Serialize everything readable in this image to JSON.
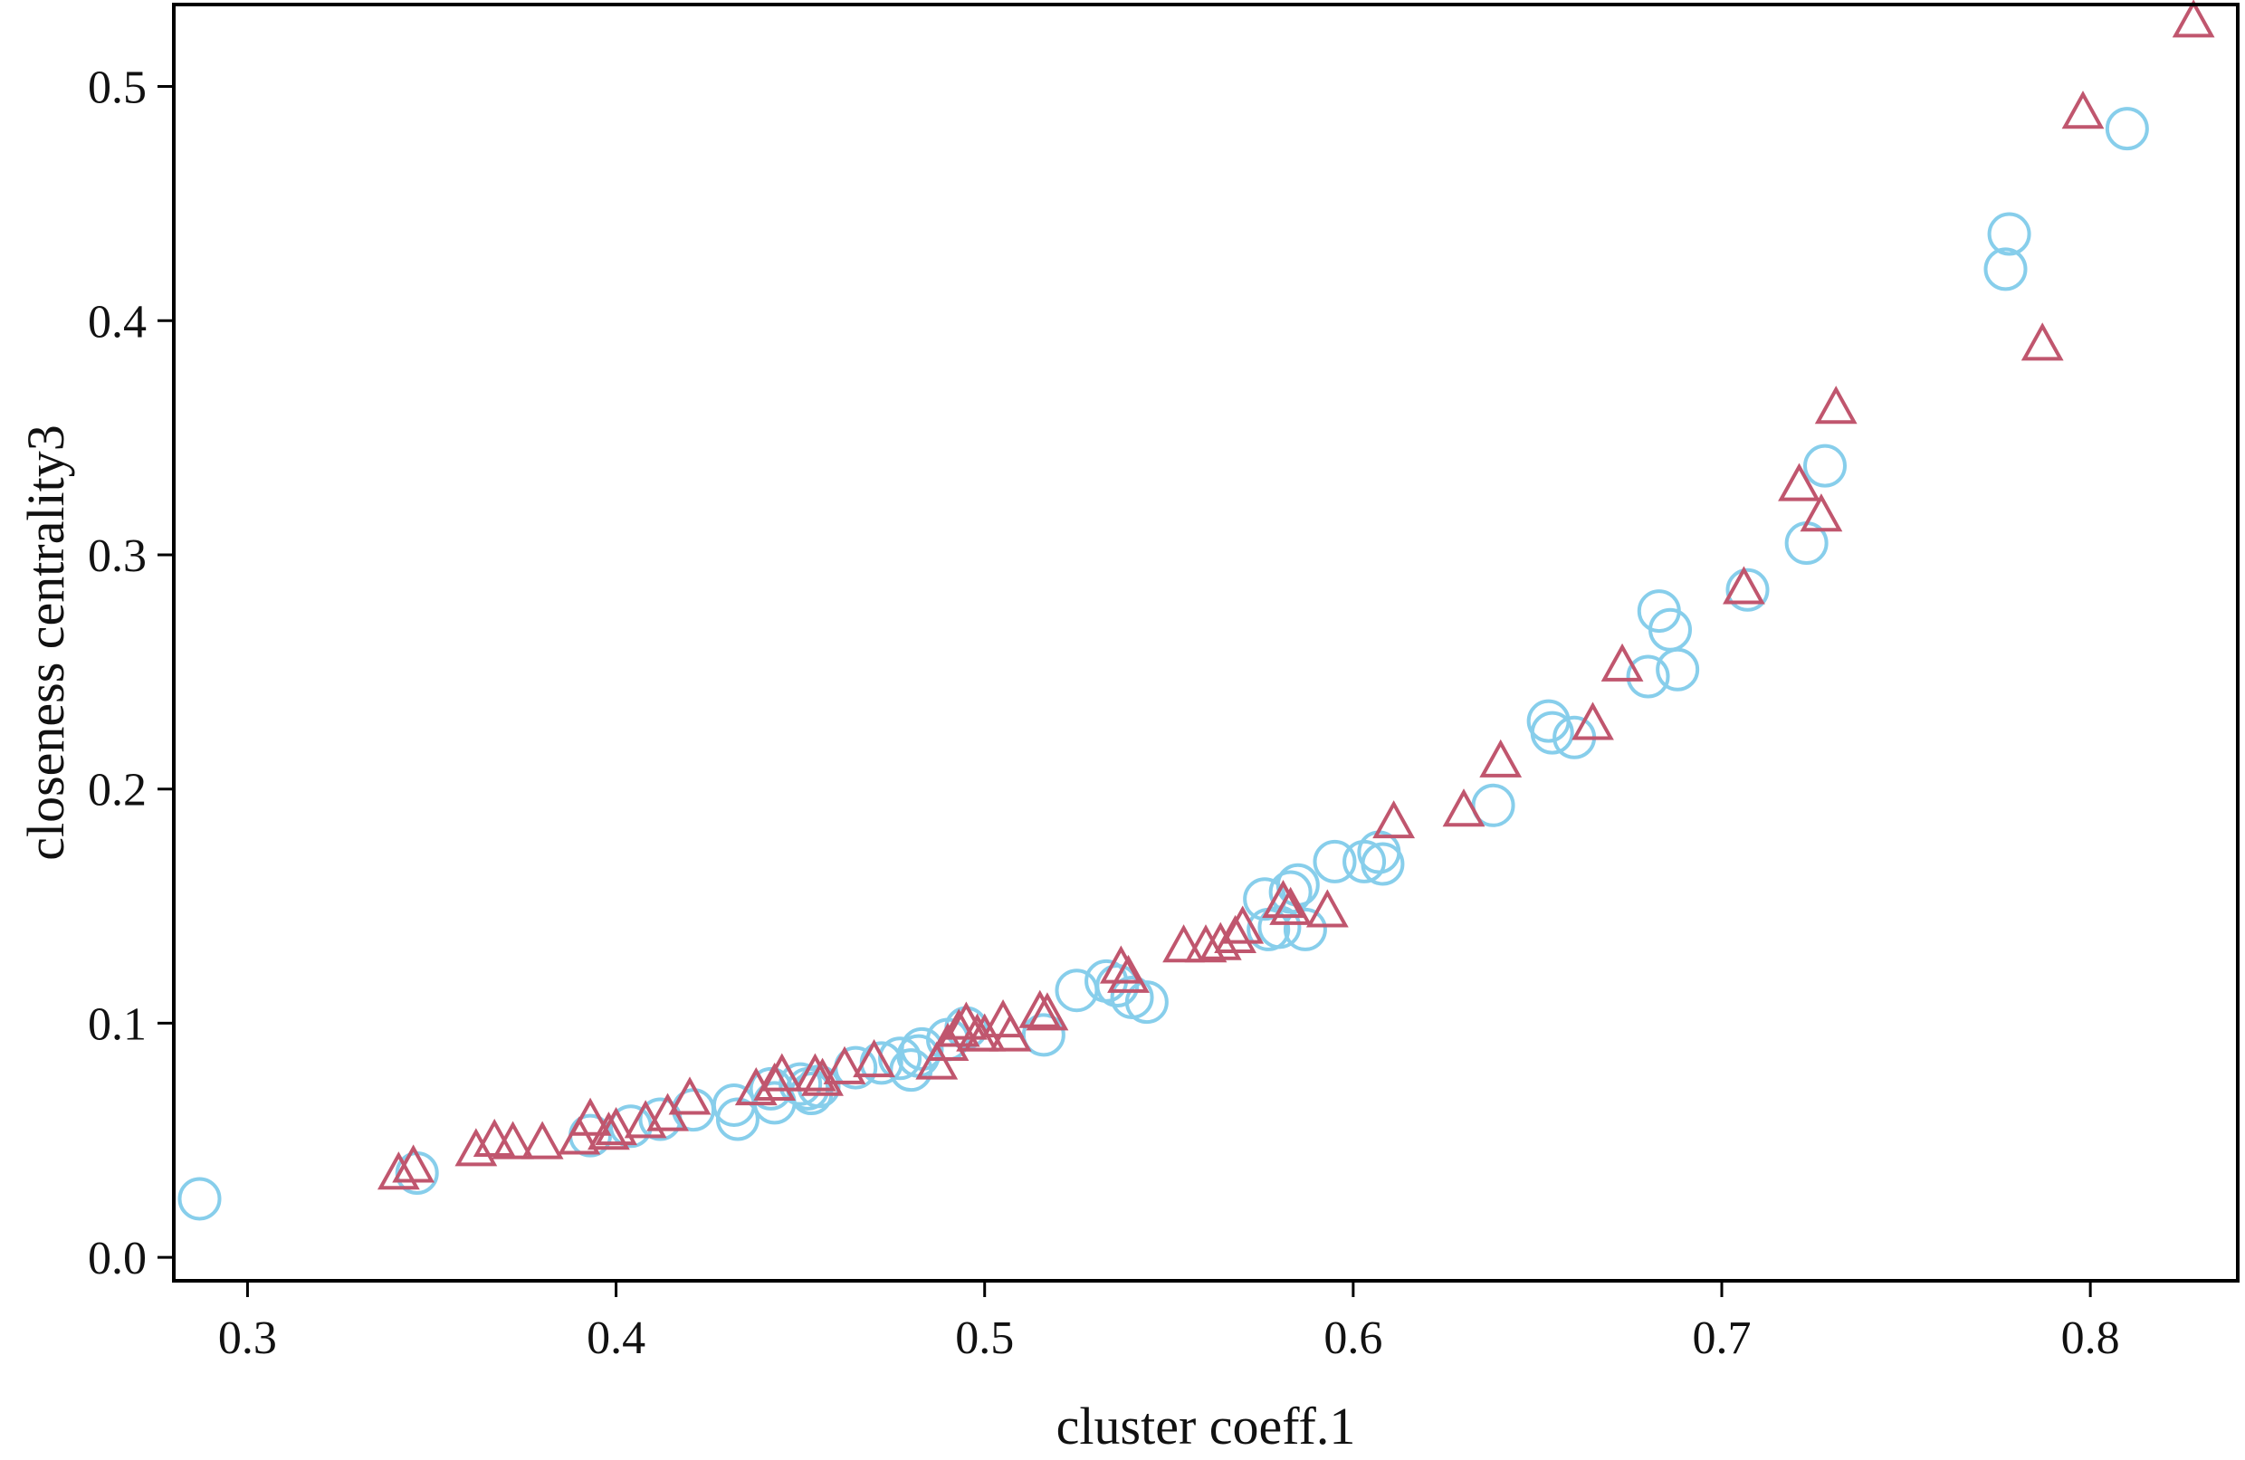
{
  "chart_data": {
    "type": "scatter",
    "title": "",
    "xlabel": "cluster coeff.1",
    "ylabel": "closeness centrality3",
    "xlim": [
      0.28,
      0.84
    ],
    "ylim": [
      -0.01,
      0.535
    ],
    "xticks": [
      0.3,
      0.4,
      0.5,
      0.6,
      0.7,
      0.8
    ],
    "yticks": [
      0.0,
      0.1,
      0.2,
      0.3,
      0.4,
      0.5
    ],
    "xtick_labels": [
      "0.3",
      "0.4",
      "0.5",
      "0.6",
      "0.7",
      "0.8"
    ],
    "ytick_labels": [
      "0.0",
      "0.1",
      "0.2",
      "0.3",
      "0.4",
      "0.5"
    ],
    "grid": false,
    "legend": "none",
    "series": [
      {
        "marker": "circle",
        "color": "#87CEEB",
        "points": [
          [
            0.287,
            0.025
          ],
          [
            0.346,
            0.036
          ],
          [
            0.393,
            0.052
          ],
          [
            0.404,
            0.056
          ],
          [
            0.412,
            0.059
          ],
          [
            0.421,
            0.063
          ],
          [
            0.432,
            0.065
          ],
          [
            0.433,
            0.059
          ],
          [
            0.442,
            0.072
          ],
          [
            0.443,
            0.066
          ],
          [
            0.45,
            0.074
          ],
          [
            0.452,
            0.072
          ],
          [
            0.453,
            0.07
          ],
          [
            0.455,
            0.073
          ],
          [
            0.465,
            0.081
          ],
          [
            0.472,
            0.083
          ],
          [
            0.477,
            0.085
          ],
          [
            0.48,
            0.08
          ],
          [
            0.482,
            0.086
          ],
          [
            0.483,
            0.089
          ],
          [
            0.49,
            0.093
          ],
          [
            0.495,
            0.098
          ],
          [
            0.516,
            0.095
          ],
          [
            0.525,
            0.114
          ],
          [
            0.533,
            0.118
          ],
          [
            0.536,
            0.116
          ],
          [
            0.54,
            0.111
          ],
          [
            0.544,
            0.109
          ],
          [
            0.576,
            0.153
          ],
          [
            0.577,
            0.14
          ],
          [
            0.58,
            0.141
          ],
          [
            0.583,
            0.156
          ],
          [
            0.585,
            0.159
          ],
          [
            0.587,
            0.14
          ],
          [
            0.595,
            0.169
          ],
          [
            0.603,
            0.169
          ],
          [
            0.607,
            0.173
          ],
          [
            0.608,
            0.168
          ],
          [
            0.638,
            0.193
          ],
          [
            0.653,
            0.229
          ],
          [
            0.654,
            0.224
          ],
          [
            0.66,
            0.222
          ],
          [
            0.68,
            0.248
          ],
          [
            0.683,
            0.276
          ],
          [
            0.686,
            0.268
          ],
          [
            0.688,
            0.251
          ],
          [
            0.707,
            0.285
          ],
          [
            0.723,
            0.305
          ],
          [
            0.728,
            0.338
          ],
          [
            0.777,
            0.422
          ],
          [
            0.778,
            0.437
          ],
          [
            0.81,
            0.482
          ]
        ]
      },
      {
        "marker": "triangle",
        "color": "#C0566E",
        "points": [
          [
            0.341,
            0.035
          ],
          [
            0.345,
            0.038
          ],
          [
            0.362,
            0.045
          ],
          [
            0.367,
            0.049
          ],
          [
            0.372,
            0.048
          ],
          [
            0.38,
            0.048
          ],
          [
            0.39,
            0.05
          ],
          [
            0.393,
            0.058
          ],
          [
            0.398,
            0.052
          ],
          [
            0.4,
            0.054
          ],
          [
            0.408,
            0.057
          ],
          [
            0.414,
            0.06
          ],
          [
            0.42,
            0.067
          ],
          [
            0.438,
            0.071
          ],
          [
            0.443,
            0.073
          ],
          [
            0.445,
            0.077
          ],
          [
            0.454,
            0.077
          ],
          [
            0.456,
            0.075
          ],
          [
            0.462,
            0.08
          ],
          [
            0.47,
            0.083
          ],
          [
            0.487,
            0.082
          ],
          [
            0.49,
            0.09
          ],
          [
            0.493,
            0.096
          ],
          [
            0.495,
            0.099
          ],
          [
            0.498,
            0.094
          ],
          [
            0.5,
            0.094
          ],
          [
            0.505,
            0.1
          ],
          [
            0.507,
            0.094
          ],
          [
            0.515,
            0.104
          ],
          [
            0.517,
            0.103
          ],
          [
            0.537,
            0.123
          ],
          [
            0.539,
            0.119
          ],
          [
            0.554,
            0.132
          ],
          [
            0.56,
            0.132
          ],
          [
            0.564,
            0.133
          ],
          [
            0.568,
            0.136
          ],
          [
            0.57,
            0.14
          ],
          [
            0.581,
            0.151
          ],
          [
            0.583,
            0.148
          ],
          [
            0.593,
            0.147
          ],
          [
            0.611,
            0.185
          ],
          [
            0.63,
            0.19
          ],
          [
            0.64,
            0.211
          ],
          [
            0.665,
            0.227
          ],
          [
            0.673,
            0.252
          ],
          [
            0.706,
            0.285
          ],
          [
            0.721,
            0.329
          ],
          [
            0.727,
            0.316
          ],
          [
            0.731,
            0.362
          ],
          [
            0.787,
            0.389
          ],
          [
            0.798,
            0.488
          ],
          [
            0.828,
            0.527
          ]
        ]
      }
    ]
  }
}
